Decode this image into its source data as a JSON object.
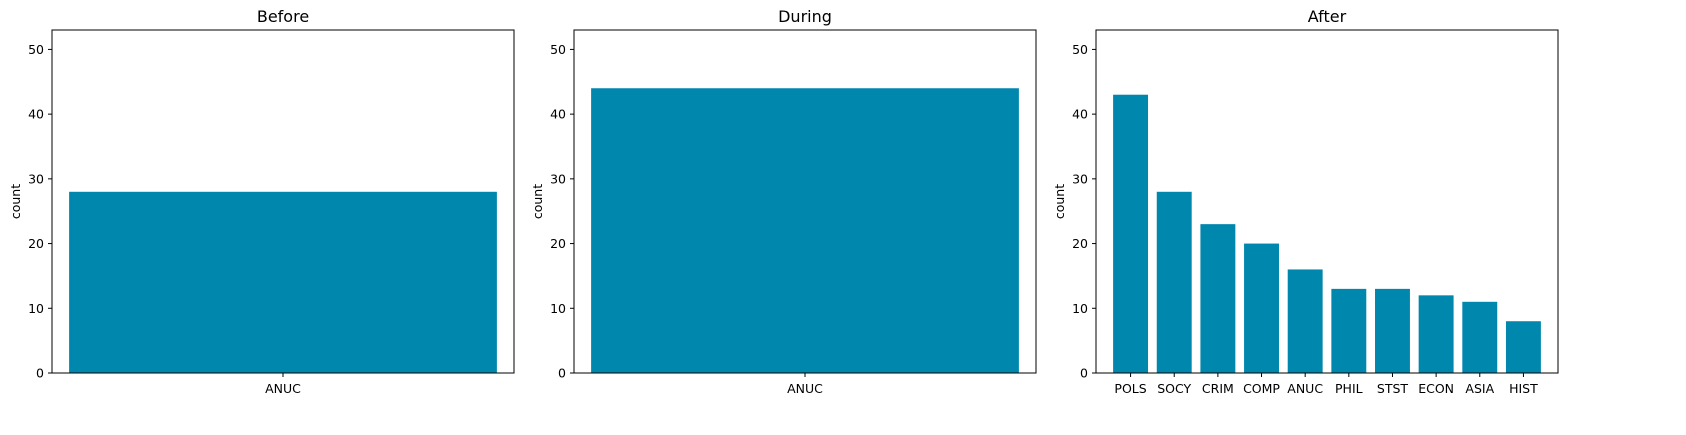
{
  "bar_color": "#0087ad",
  "chart_data": [
    {
      "type": "bar",
      "title": "Before",
      "xlabel": "",
      "ylabel": "count",
      "ylim": [
        0,
        53
      ],
      "yticks": [
        0,
        10,
        20,
        30,
        40,
        50
      ],
      "categories": [
        "ANUC"
      ],
      "values": [
        28
      ],
      "grid": false
    },
    {
      "type": "bar",
      "title": "During",
      "xlabel": "",
      "ylabel": "count",
      "ylim": [
        0,
        53
      ],
      "yticks": [
        0,
        10,
        20,
        30,
        40,
        50
      ],
      "categories": [
        "ANUC"
      ],
      "values": [
        44
      ],
      "grid": false
    },
    {
      "type": "bar",
      "title": "After",
      "xlabel": "",
      "ylabel": "count",
      "ylim": [
        0,
        53
      ],
      "yticks": [
        0,
        10,
        20,
        30,
        40,
        50
      ],
      "categories": [
        "POLS",
        "SOCY",
        "CRIM",
        "COMP",
        "ANUC",
        "PHIL",
        "STST",
        "ECON",
        "ASIA",
        "HIST"
      ],
      "values": [
        43,
        28,
        23,
        20,
        16,
        13,
        13,
        12,
        11,
        8
      ],
      "grid": false
    }
  ]
}
